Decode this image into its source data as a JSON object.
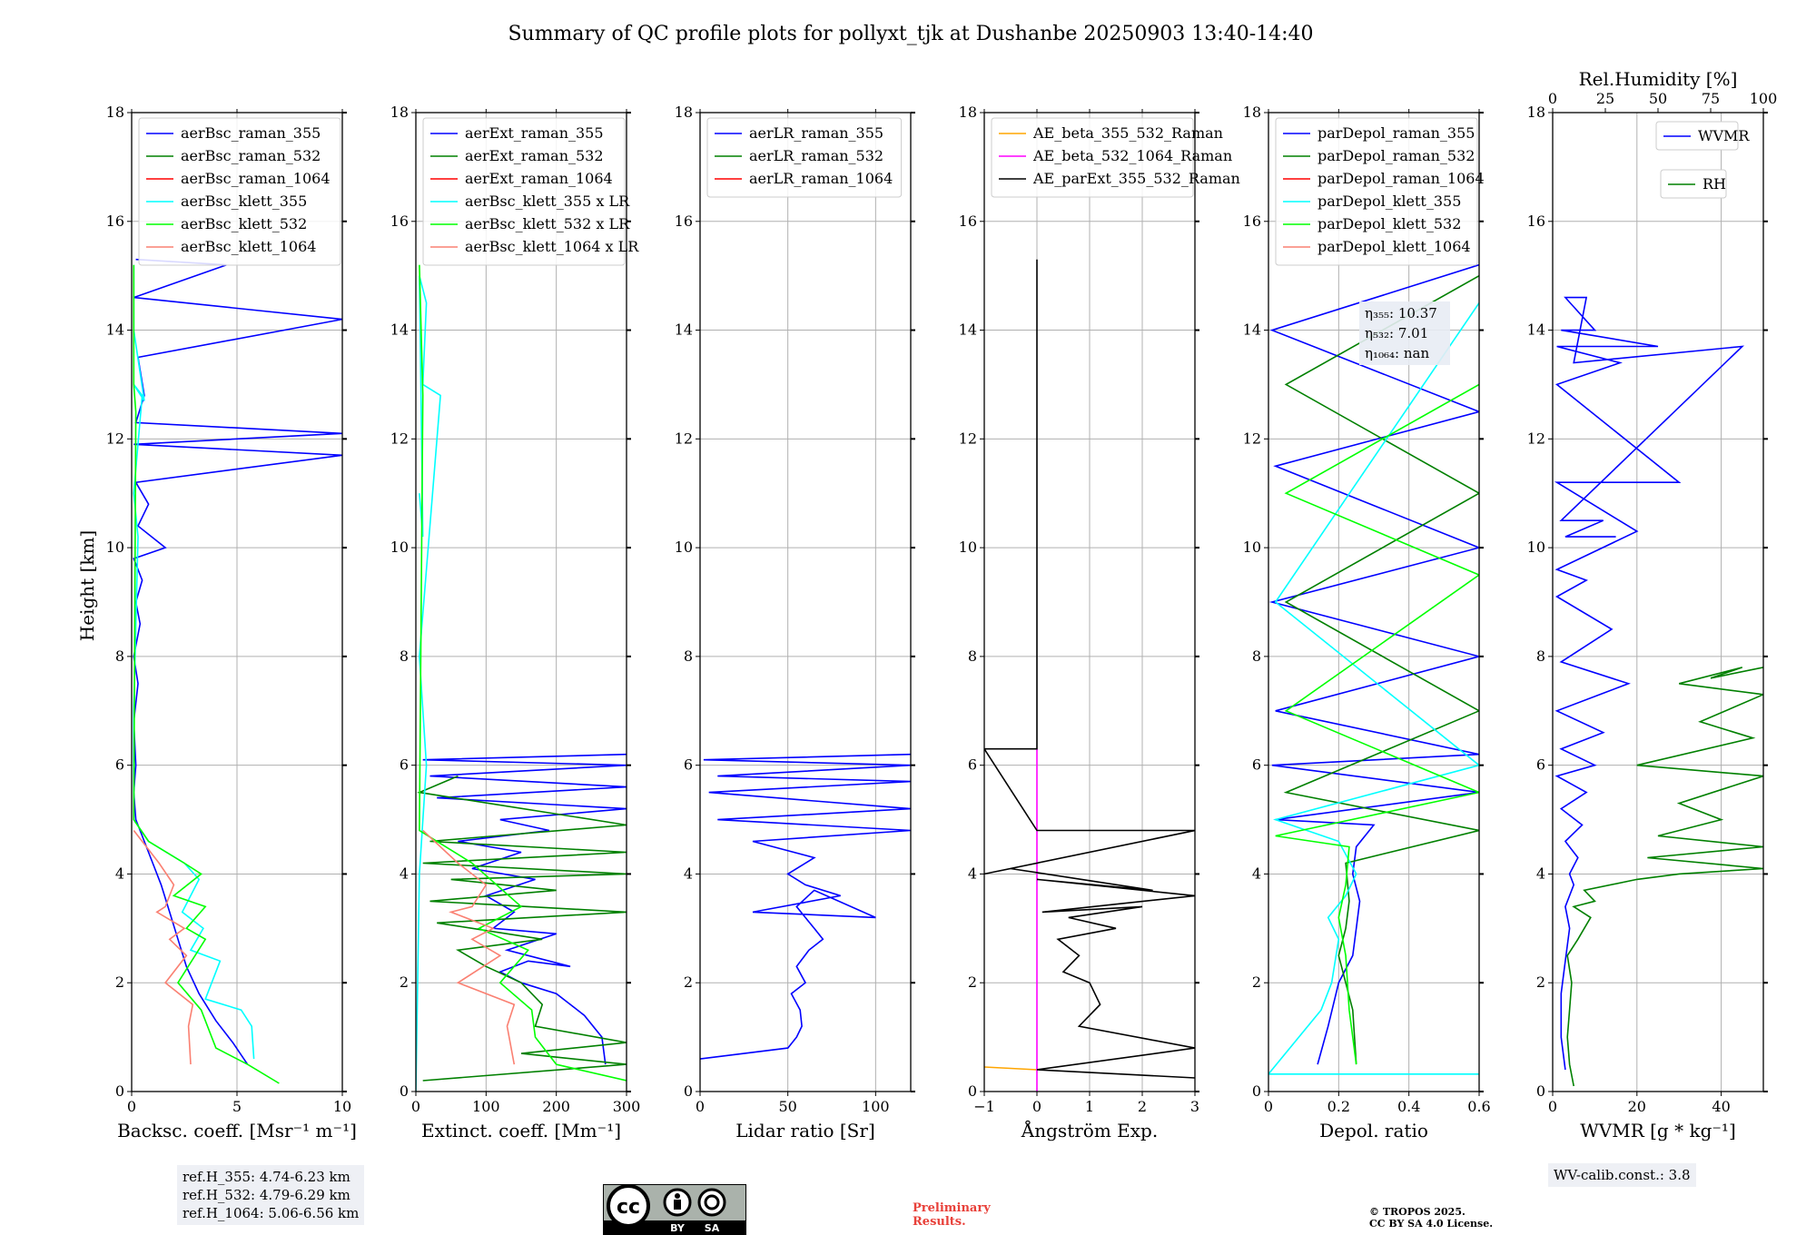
{
  "title": "Summary of QC profile plots for pollyxt_tjk at Dushanbe 20250903 13:40-14:40",
  "ylabel": "Height [km]",
  "colors": {
    "c355": "#0000ff",
    "c532": "#008000",
    "c1064": "#ff0000",
    "k355": "#00ffff",
    "k532": "#00ff00",
    "k1064": "#fa8072",
    "orange": "#ffa500",
    "magenta": "#ff00ff",
    "black": "#000000"
  },
  "chart_data": [
    {
      "type": "line",
      "id": "bsc",
      "xlabel": "Backsc. coeff. [Msr⁻¹ m⁻¹]",
      "xlim": [
        0,
        10
      ],
      "xticks": [
        0,
        5,
        10
      ],
      "ylim": [
        0,
        18
      ],
      "yticks": [
        0,
        2,
        4,
        6,
        8,
        10,
        12,
        14,
        16,
        18
      ],
      "legend": "top-left",
      "series": [
        {
          "name": "aerBsc_raman_355",
          "color": "#0000ff",
          "x": [
            5.5,
            4.8,
            4.0,
            3.2,
            2.6,
            2.2,
            1.8,
            1.4,
            0.9,
            0.5,
            0.2,
            0.1,
            0.2,
            0.1,
            0.3,
            0.1,
            0.4,
            0.2,
            0.5,
            0.1,
            1.6,
            0.3,
            0.8,
            0.2,
            10,
            0.1,
            10,
            0.2,
            0.6,
            0.3,
            10,
            0.1,
            4.5,
            0.2
          ],
          "y": [
            0.5,
            0.9,
            1.3,
            1.8,
            2.3,
            2.8,
            3.3,
            3.8,
            4.3,
            4.7,
            5.0,
            5.5,
            6.0,
            6.8,
            7.5,
            8.0,
            8.6,
            9.0,
            9.4,
            9.8,
            10.0,
            10.4,
            10.8,
            11.2,
            11.7,
            11.9,
            12.1,
            12.3,
            12.8,
            13.5,
            14.2,
            14.6,
            15.2,
            15.3
          ]
        },
        {
          "name": "aerBsc_raman_532",
          "color": "#008000",
          "x": [],
          "y": []
        },
        {
          "name": "aerBsc_raman_1064",
          "color": "#ff0000",
          "x": [],
          "y": []
        },
        {
          "name": "aerBsc_klett_355",
          "color": "#00ffff",
          "x": [
            5.8,
            5.7,
            5.2,
            3.5,
            4.2,
            2.8,
            3.4,
            2.4,
            3.2,
            2.5,
            0.8,
            0.1,
            0.1,
            0.3,
            0.1,
            0.5,
            0.1,
            0.6,
            0.1,
            0.1
          ],
          "y": [
            0.6,
            1.2,
            1.5,
            1.7,
            2.4,
            2.6,
            3.0,
            3.3,
            3.9,
            4.2,
            4.6,
            5.0,
            7.0,
            10.2,
            11.0,
            12.8,
            13.0,
            12.7,
            14.0,
            15.2
          ]
        },
        {
          "name": "aerBsc_klett_532",
          "color": "#00ff00",
          "x": [
            7.0,
            5.5,
            4.0,
            3.3,
            2.2,
            3.5,
            2.6,
            3.5,
            2.0,
            3.3,
            2.5,
            0.8,
            0.1,
            0.2,
            0.1,
            0.1
          ],
          "y": [
            0.15,
            0.5,
            0.8,
            1.5,
            2.0,
            2.8,
            3.0,
            3.4,
            3.6,
            4.0,
            4.2,
            4.6,
            5.0,
            12.5,
            13.0,
            15.2
          ]
        },
        {
          "name": "aerBsc_klett_1064",
          "color": "#fa8072",
          "x": [
            2.8,
            2.7,
            2.9,
            1.6,
            2.6,
            1.8,
            2.5,
            1.2,
            1.6,
            2.0,
            1.3,
            0.5,
            0.1
          ],
          "y": [
            0.5,
            1.2,
            1.6,
            2.0,
            2.5,
            2.8,
            3.0,
            3.3,
            3.4,
            3.8,
            4.2,
            4.6,
            4.8
          ]
        }
      ]
    },
    {
      "type": "line",
      "id": "ext",
      "xlabel": "Extinct. coeff. [Mm⁻¹]",
      "xlim": [
        0,
        300
      ],
      "xticks": [
        0,
        100,
        200,
        300
      ],
      "ylim": [
        0,
        18
      ],
      "yticks": [
        0,
        2,
        4,
        6,
        8,
        10,
        12,
        14,
        16,
        18
      ],
      "legend": "top-left",
      "series": [
        {
          "name": "aerExt_raman_355",
          "color": "#0000ff",
          "x": [
            270,
            265,
            240,
            200,
            150,
            120,
            160,
            220,
            130,
            200,
            110,
            140,
            100,
            170,
            80,
            150,
            60,
            190,
            120,
            300,
            30,
            300,
            20,
            300,
            10,
            300
          ],
          "y": [
            0.5,
            1.0,
            1.4,
            1.8,
            2.0,
            2.2,
            2.4,
            2.3,
            2.6,
            2.9,
            3.0,
            3.3,
            3.6,
            3.9,
            4.1,
            4.4,
            4.6,
            4.8,
            5.0,
            5.2,
            5.4,
            5.6,
            5.8,
            6.0,
            6.1,
            6.2
          ]
        },
        {
          "name": "aerExt_raman_532",
          "color": "#008000",
          "x": [
            10,
            300,
            150,
            300,
            170,
            180,
            150,
            100,
            60,
            180,
            30,
            300,
            20,
            200,
            50,
            300,
            10,
            300,
            20,
            300,
            5,
            60
          ],
          "y": [
            0.2,
            0.5,
            0.7,
            0.9,
            1.2,
            1.6,
            2.0,
            2.3,
            2.6,
            2.8,
            3.1,
            3.3,
            3.5,
            3.7,
            3.9,
            4.0,
            4.2,
            4.4,
            4.6,
            4.9,
            5.5,
            5.8
          ]
        },
        {
          "name": "aerExt_raman_1064",
          "color": "#ff0000",
          "x": [],
          "y": []
        },
        {
          "name": "aerBsc_klett_355 x LR",
          "color": "#00ffff",
          "x": [
            0,
            5,
            15,
            5,
            35,
            10,
            15,
            5,
            10,
            5
          ],
          "y": [
            0,
            4,
            6,
            8,
            12.8,
            13.0,
            14.5,
            15.0,
            10.2,
            11.0
          ]
        },
        {
          "name": "aerBsc_klett_532 x LR",
          "color": "#00ff00",
          "x": [
            300,
            200,
            170,
            165,
            120,
            160,
            90,
            150,
            80,
            5,
            10,
            5
          ],
          "y": [
            0.2,
            0.5,
            1.0,
            1.5,
            2.0,
            2.6,
            3.0,
            3.4,
            4.2,
            4.8,
            12.8,
            15.2
          ]
        },
        {
          "name": "aerBsc_klett_1064 x LR",
          "color": "#fa8072",
          "x": [
            140,
            130,
            140,
            60,
            120,
            80,
            110,
            50,
            80,
            100,
            60,
            10
          ],
          "y": [
            0.5,
            1.2,
            1.6,
            2.0,
            2.5,
            2.8,
            3.0,
            3.3,
            3.4,
            3.8,
            4.2,
            4.8
          ]
        }
      ]
    },
    {
      "type": "line",
      "id": "lr",
      "xlabel": "Lidar ratio [Sr]",
      "xlim": [
        0,
        120
      ],
      "xticks": [
        0,
        50,
        100
      ],
      "ylim": [
        0,
        18
      ],
      "yticks": [
        0,
        2,
        4,
        6,
        8,
        10,
        12,
        14,
        16,
        18
      ],
      "legend": "top-left",
      "series": [
        {
          "name": "aerLR_raman_355",
          "color": "#0000ff",
          "x": [
            0,
            50,
            55,
            58,
            57,
            52,
            60,
            55,
            62,
            70,
            65,
            60,
            55,
            65,
            100,
            30,
            80,
            60,
            50,
            65,
            30,
            120,
            10,
            120,
            5,
            120,
            10,
            120,
            2,
            120
          ],
          "y": [
            0.6,
            0.8,
            1.0,
            1.2,
            1.5,
            1.8,
            2.0,
            2.3,
            2.6,
            2.8,
            3.0,
            3.2,
            3.4,
            3.7,
            3.2,
            3.3,
            3.6,
            3.8,
            4.0,
            4.3,
            4.6,
            4.8,
            5.0,
            5.2,
            5.5,
            5.7,
            5.8,
            6.0,
            6.1,
            6.2
          ]
        },
        {
          "name": "aerLR_raman_532",
          "color": "#008000",
          "x": [],
          "y": []
        },
        {
          "name": "aerLR_raman_1064",
          "color": "#ff0000",
          "x": [],
          "y": []
        }
      ]
    },
    {
      "type": "line",
      "id": "ae",
      "xlabel": "Ångström Exp.",
      "xlim": [
        -1,
        3
      ],
      "xticks": [
        -1,
        0,
        1,
        2,
        3
      ],
      "ylim": [
        0,
        18
      ],
      "yticks": [
        0,
        2,
        4,
        6,
        8,
        10,
        12,
        14,
        16,
        18
      ],
      "legend": "top-left",
      "series": [
        {
          "name": "AE_beta_355_532_Raman",
          "color": "#ffa500",
          "x": [
            -1,
            0
          ],
          "y": [
            0.45,
            0.4
          ]
        },
        {
          "name": "AE_beta_532_1064_Raman",
          "color": "#ff00ff",
          "x": [
            0,
            0
          ],
          "y": [
            0,
            6.3
          ]
        },
        {
          "name": "AE_parExt_355_532_Raman",
          "color": "#000000",
          "x": [
            3,
            0,
            3,
            0.8,
            1.2,
            1.0,
            0.5,
            0.8,
            0.4,
            1.5,
            0.6,
            2.0,
            0.1,
            3,
            0,
            2.2,
            -0.5,
            -1,
            3,
            0,
            -1,
            0,
            0
          ],
          "y": [
            0.25,
            0.4,
            0.8,
            1.2,
            1.6,
            2.0,
            2.2,
            2.5,
            2.8,
            3.0,
            3.2,
            3.4,
            3.3,
            3.6,
            3.9,
            3.7,
            4.1,
            4.0,
            4.8,
            4.8,
            6.3,
            6.3,
            15.3
          ]
        }
      ]
    },
    {
      "type": "line",
      "id": "depol",
      "xlabel": "Depol. ratio",
      "xlim": [
        0.0,
        0.6
      ],
      "xticks": [
        0.0,
        0.2,
        0.4,
        0.6
      ],
      "ylim": [
        0,
        18
      ],
      "yticks": [
        0,
        2,
        4,
        6,
        8,
        10,
        12,
        14,
        16,
        18
      ],
      "legend": "top-left",
      "annotation": [
        "η₃₅₅: 10.37",
        "η₅₃₂: 7.01",
        "η₁₀₆₄: nan"
      ],
      "series": [
        {
          "name": "parDepol_raman_355",
          "color": "#0000ff",
          "x": [
            0.14,
            0.17,
            0.2,
            0.24,
            0.25,
            0.26,
            0.24,
            0.25,
            0.3,
            0.02,
            0.6,
            0.01,
            0.6,
            0.02,
            0.6,
            0.01,
            0.6,
            0.02,
            0.6,
            0.01,
            0.6
          ],
          "y": [
            0.5,
            1.2,
            2.0,
            2.5,
            3.0,
            3.5,
            4.0,
            4.5,
            4.9,
            5.0,
            5.5,
            6.0,
            6.2,
            7.0,
            8.0,
            9.0,
            10.0,
            11.5,
            12.5,
            14.0,
            15.2
          ]
        },
        {
          "name": "parDepol_raman_532",
          "color": "#008000",
          "x": [
            0.25,
            0.24,
            0.2,
            0.22,
            0.23,
            0.22,
            0.6,
            0.05,
            0.6,
            0.05,
            0.6,
            0.05,
            0.6
          ],
          "y": [
            0.5,
            1.5,
            2.5,
            3.0,
            3.5,
            4.2,
            4.8,
            5.5,
            7.0,
            9.0,
            11.0,
            13.0,
            15.0
          ]
        },
        {
          "name": "parDepol_raman_1064",
          "color": "#ff0000",
          "x": [],
          "y": []
        },
        {
          "name": "parDepol_klett_355",
          "color": "#00ffff",
          "x": [
            0.6,
            0.0,
            0.15,
            0.18,
            0.2,
            0.17,
            0.22,
            0.25,
            0.2,
            0.02,
            0.6,
            0.02,
            0.6
          ],
          "y": [
            0.32,
            0.32,
            1.5,
            2.0,
            2.8,
            3.2,
            3.6,
            4.0,
            4.6,
            5.0,
            6.0,
            9.0,
            14.5
          ]
        },
        {
          "name": "parDepol_klett_532",
          "color": "#00ff00",
          "x": [
            0.25,
            0.23,
            0.22,
            0.2,
            0.22,
            0.23,
            0.02,
            0.6,
            0.05,
            0.6,
            0.05,
            0.6
          ],
          "y": [
            0.5,
            1.5,
            2.5,
            3.2,
            3.8,
            4.5,
            4.7,
            5.5,
            7.0,
            9.5,
            11.0,
            13.0
          ]
        },
        {
          "name": "parDepol_klett_1064",
          "color": "#fa8072",
          "x": [],
          "y": []
        }
      ]
    },
    {
      "type": "line",
      "id": "wv",
      "xlabel": "WVMR [g * kg⁻¹]",
      "xlim": [
        0,
        50
      ],
      "xticks": [
        0,
        20,
        40
      ],
      "ylim": [
        0,
        18
      ],
      "yticks": [
        0,
        2,
        4,
        6,
        8,
        10,
        12,
        14,
        16,
        18
      ],
      "x2label": "Rel.Humidity [%]",
      "x2lim": [
        0,
        100
      ],
      "x2ticks": [
        0,
        25,
        50,
        75,
        100
      ],
      "series": [
        {
          "name": "WVMR",
          "color": "#0000ff",
          "x": [
            3,
            2,
            2,
            3,
            4,
            3,
            5,
            4,
            6,
            3,
            7,
            2,
            8,
            1,
            10,
            2,
            12,
            1,
            18,
            2,
            14,
            1,
            8,
            1,
            20,
            1,
            30,
            1,
            16,
            1,
            25,
            2,
            10,
            3,
            8,
            5,
            45,
            2,
            12,
            3,
            15
          ],
          "y": [
            0.4,
            1.0,
            1.8,
            2.4,
            3.0,
            3.4,
            3.8,
            4.0,
            4.3,
            4.6,
            4.9,
            5.2,
            5.5,
            5.8,
            6.0,
            6.3,
            6.6,
            7.0,
            7.5,
            7.9,
            8.5,
            9.1,
            9.4,
            9.6,
            10.3,
            11.2,
            11.2,
            13.0,
            13.4,
            13.7,
            13.7,
            14.0,
            14.0,
            14.6,
            14.6,
            13.4,
            13.7,
            10.5,
            10.5,
            10.2,
            10.2
          ]
        },
        {
          "name": "RH",
          "color": "#008000",
          "x": [
            10,
            8,
            7,
            8,
            9,
            7,
            12,
            15,
            18,
            10,
            20,
            15,
            40,
            60,
            100,
            45,
            100,
            50,
            80,
            60,
            100,
            40,
            95,
            70,
            100,
            60,
            90,
            75,
            100
          ],
          "y": [
            0.1,
            0.5,
            1.0,
            1.5,
            2.0,
            2.5,
            2.8,
            3.0,
            3.2,
            3.4,
            3.5,
            3.7,
            3.9,
            4.0,
            4.1,
            4.3,
            4.5,
            4.7,
            5.0,
            5.3,
            5.8,
            6.0,
            6.5,
            6.8,
            7.3,
            7.5,
            7.8,
            7.6,
            7.8
          ]
        }
      ]
    }
  ],
  "refbox": [
    "ref.H_355: 4.74-6.23 km",
    "ref.H_532: 4.79-6.29 km",
    "ref.H_1064: 5.06-6.56 km"
  ],
  "wvbox": "WV-calib.const.: 3.8",
  "preliminary": [
    "Preliminary",
    "Results."
  ],
  "copyright": [
    "© TROPOS 2025.",
    "CC BY SA 4.0 License."
  ],
  "cc_logo": {
    "label": "CC BY SA",
    "by": "BY",
    "sa": "SA"
  }
}
